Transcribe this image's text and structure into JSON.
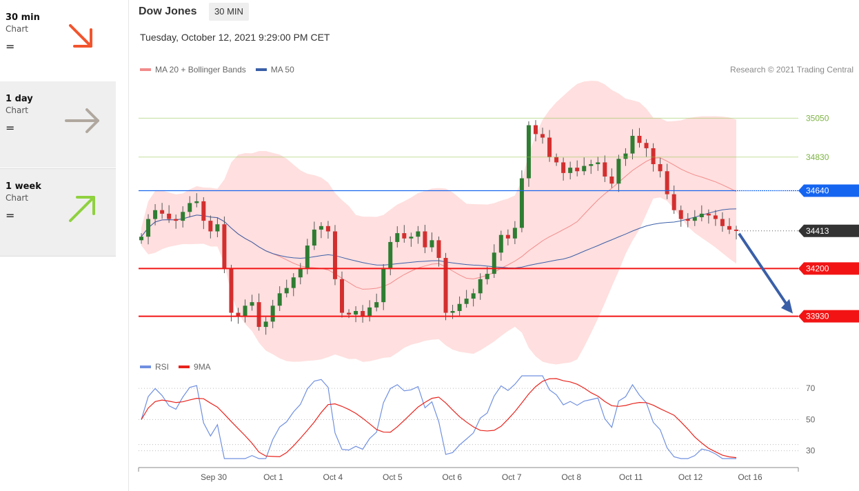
{
  "sidebar": {
    "items": [
      {
        "label": "30 min",
        "sub": "Chart",
        "menu": "=",
        "icon": "arrow-down-right-icon",
        "color": "#f2542d"
      },
      {
        "label": "1 day",
        "sub": "Chart",
        "menu": "=",
        "icon": "arrow-right-icon",
        "color": "#b0a89f"
      },
      {
        "label": "1 week",
        "sub": "Chart",
        "menu": "=",
        "icon": "arrow-up-right-icon",
        "color": "#8fd13f"
      }
    ]
  },
  "header": {
    "title": "Dow Jones",
    "timeframe": "30 MIN",
    "datetime": "Tuesday, October 12, 2021 9:29:00 PM CET",
    "credit": "Research © 2021 Trading Central"
  },
  "legend_main": [
    {
      "label": "MA 20 + Bollinger Bands",
      "color": "#f28b8b"
    },
    {
      "label": "MA 50",
      "color": "#3a5fa8"
    }
  ],
  "legend_rsi": [
    {
      "label": "RSI",
      "color": "#6f8fe0"
    },
    {
      "label": "9MA",
      "color": "#e8231c"
    }
  ],
  "chart_data": {
    "type": "candlestick",
    "ylim": [
      33730,
      35250
    ],
    "x_ticks": [
      "Sep 30",
      "Oct 1",
      "Oct 4",
      "Oct 5",
      "Oct 6",
      "Oct 7",
      "Oct 8",
      "Oct 11",
      "Oct 12",
      "Oct 16"
    ],
    "levels": [
      {
        "value": 35050,
        "label": "35050",
        "kind": "resistance",
        "color": "#8dc34a"
      },
      {
        "value": 34830,
        "label": "34830",
        "kind": "resistance",
        "color": "#8dc34a"
      },
      {
        "value": 34640,
        "label": "34640",
        "kind": "pivot",
        "color": "#1565f0"
      },
      {
        "value": 34413,
        "label": "34413",
        "kind": "last",
        "color": "#333333"
      },
      {
        "value": 34200,
        "label": "34200",
        "kind": "support",
        "color": "#f21414"
      },
      {
        "value": 33930,
        "label": "33930",
        "kind": "support",
        "color": "#f21414"
      }
    ],
    "projection": {
      "from": 34413,
      "to": 33930,
      "direction": "down",
      "color": "#3a5fa8"
    },
    "close": [
      34380,
      34480,
      34530,
      34510,
      34480,
      34470,
      34520,
      34570,
      34580,
      34470,
      34410,
      34450,
      34200,
      33950,
      33930,
      33990,
      34010,
      33870,
      33900,
      33990,
      34060,
      34090,
      34150,
      34200,
      34330,
      34420,
      34440,
      34410,
      34140,
      33950,
      33940,
      33960,
      33930,
      33980,
      34010,
      34200,
      34350,
      34400,
      34370,
      34380,
      34410,
      34320,
      34360,
      34260,
      33950,
      33960,
      34000,
      34030,
      34060,
      34140,
      34170,
      34290,
      34390,
      34370,
      34430,
      34710,
      35010,
      34960,
      34940,
      34830,
      34800,
      34740,
      34770,
      34750,
      34780,
      34790,
      34800,
      34720,
      34680,
      34820,
      34850,
      34950,
      34910,
      34880,
      34790,
      34750,
      34620,
      34530,
      34480,
      34470,
      34490,
      34510,
      34500,
      34480,
      34440,
      34420,
      34413
    ],
    "rsi": {
      "ylim": [
        25,
        78
      ],
      "ticks": [
        70,
        50,
        30
      ],
      "refs": [
        70,
        50,
        30,
        34
      ]
    },
    "annotations": []
  }
}
